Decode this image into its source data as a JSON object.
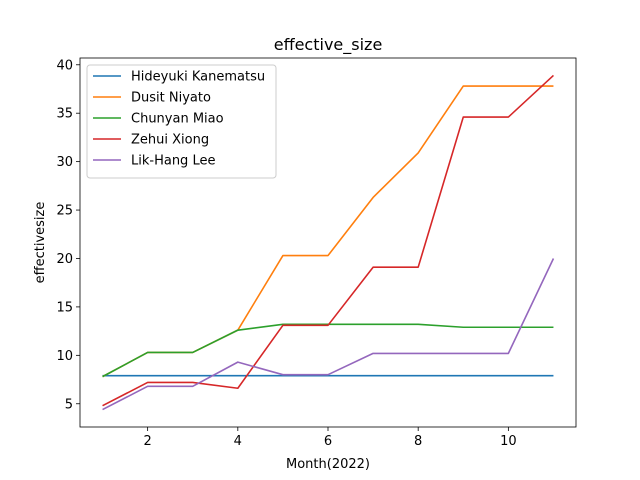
{
  "chart_data": {
    "type": "line",
    "title": "effective_size",
    "xlabel": "Month(2022)",
    "ylabel": "effectivesize",
    "x": [
      1,
      2,
      3,
      4,
      5,
      6,
      7,
      8,
      9,
      10,
      11
    ],
    "xlim": [
      0.5,
      11.5
    ],
    "ylim": [
      2.6,
      40.7
    ],
    "xticks": [
      2,
      4,
      6,
      8,
      10
    ],
    "yticks": [
      5,
      10,
      15,
      20,
      25,
      30,
      35,
      40
    ],
    "grid": false,
    "legend_position": "top-left",
    "series": [
      {
        "name": "Hideyuki Kanematsu",
        "color": "#1f77b4",
        "values": [
          7.9,
          7.9,
          7.9,
          7.9,
          7.9,
          7.9,
          7.9,
          7.9,
          7.9,
          7.9,
          7.9
        ]
      },
      {
        "name": "Dusit Niyato",
        "color": "#ff7f0e",
        "values": [
          7.8,
          10.3,
          10.3,
          12.6,
          20.3,
          20.3,
          26.3,
          30.9,
          37.8,
          37.8,
          37.8
        ]
      },
      {
        "name": "Chunyan Miao",
        "color": "#2ca02c",
        "values": [
          7.8,
          10.3,
          10.3,
          12.6,
          13.2,
          13.2,
          13.2,
          13.2,
          12.9,
          12.9,
          12.9
        ]
      },
      {
        "name": "Zehui Xiong",
        "color": "#d62728",
        "values": [
          4.8,
          7.2,
          7.2,
          6.6,
          13.1,
          13.1,
          19.1,
          19.1,
          34.6,
          34.6,
          38.9
        ]
      },
      {
        "name": "Lik-Hang Lee",
        "color": "#9467bd",
        "values": [
          4.4,
          6.8,
          6.8,
          9.3,
          8.0,
          8.0,
          10.2,
          10.2,
          10.2,
          10.2,
          20.0
        ]
      }
    ]
  }
}
